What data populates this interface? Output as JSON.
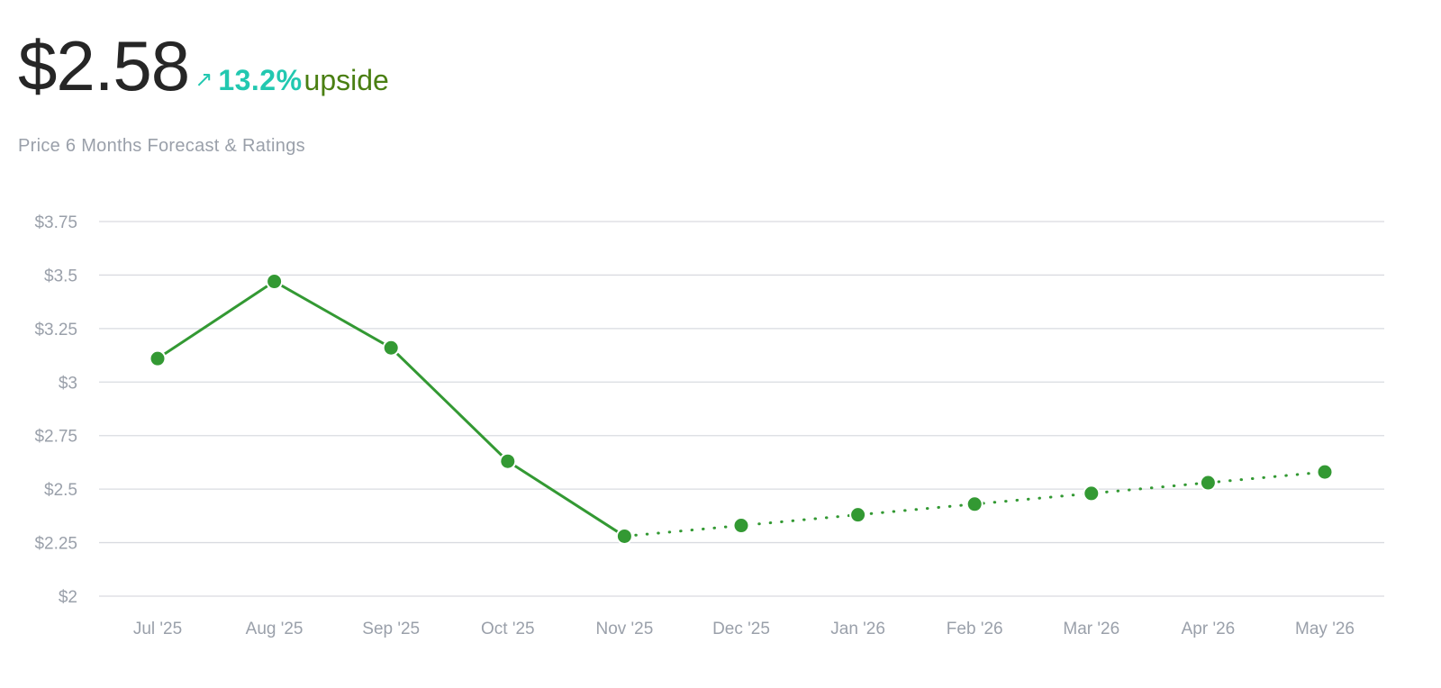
{
  "header": {
    "price": "$2.58",
    "arrow_icon": "up-right-arrow-icon",
    "arrow_glyph": "↗",
    "change_pct": "13.2%",
    "change_label": "upside",
    "subtitle": "Price 6 Months Forecast & Ratings"
  },
  "colors": {
    "line": "#339933",
    "grid": "#d9dbe0",
    "tick_text": "#9aa0aa",
    "pct_text": "#22c8b0",
    "upside_text": "#4a7f12"
  },
  "chart_data": {
    "type": "line",
    "categories": [
      "Jul '25",
      "Aug '25",
      "Sep '25",
      "Oct '25",
      "Nov '25",
      "Dec '25",
      "Jan '26",
      "Feb '26",
      "Mar '26",
      "Apr '26",
      "May '26"
    ],
    "series": [
      {
        "style": "solid",
        "values": [
          3.11,
          3.47,
          3.16,
          2.63,
          2.28,
          null,
          null,
          null,
          null,
          null,
          null
        ]
      },
      {
        "style": "dotted",
        "values": [
          null,
          null,
          null,
          null,
          2.28,
          2.33,
          2.38,
          2.43,
          2.48,
          2.53,
          2.58
        ]
      }
    ],
    "ylim": [
      2,
      3.75
    ],
    "yticks": [
      2,
      2.25,
      2.5,
      2.75,
      3,
      3.25,
      3.5,
      3.75
    ],
    "ytick_labels": [
      "$2",
      "$2.25",
      "$2.5",
      "$2.75",
      "$3",
      "$3.25",
      "$3.5",
      "$3.75"
    ],
    "grid": true,
    "title": "",
    "xlabel": "",
    "ylabel": ""
  }
}
